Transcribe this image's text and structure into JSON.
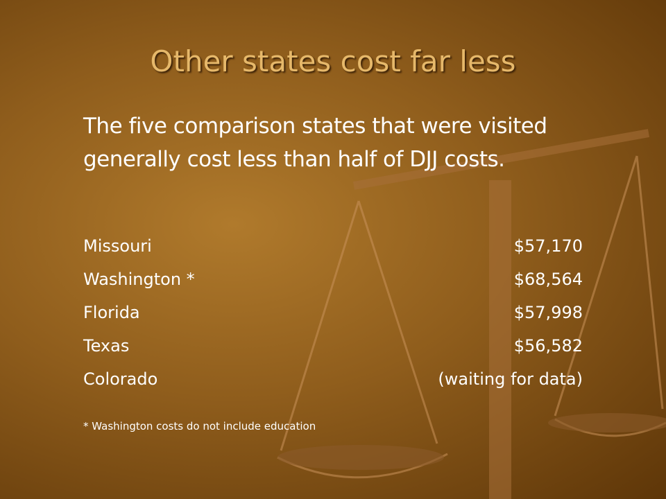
{
  "title": "Other states cost far less",
  "subtitle": "The five comparison states that were visited  generally cost less than half of DJJ costs.",
  "table": {
    "rows": [
      [
        "Missouri",
        "$57,170"
      ],
      [
        "Washington *",
        "$68,564"
      ],
      [
        "Florida",
        "$57,998"
      ],
      [
        "Texas",
        "$56,582"
      ],
      [
        "Colorado",
        "(waiting for data)"
      ]
    ]
  },
  "footnote": "* Washington costs do not include education"
}
